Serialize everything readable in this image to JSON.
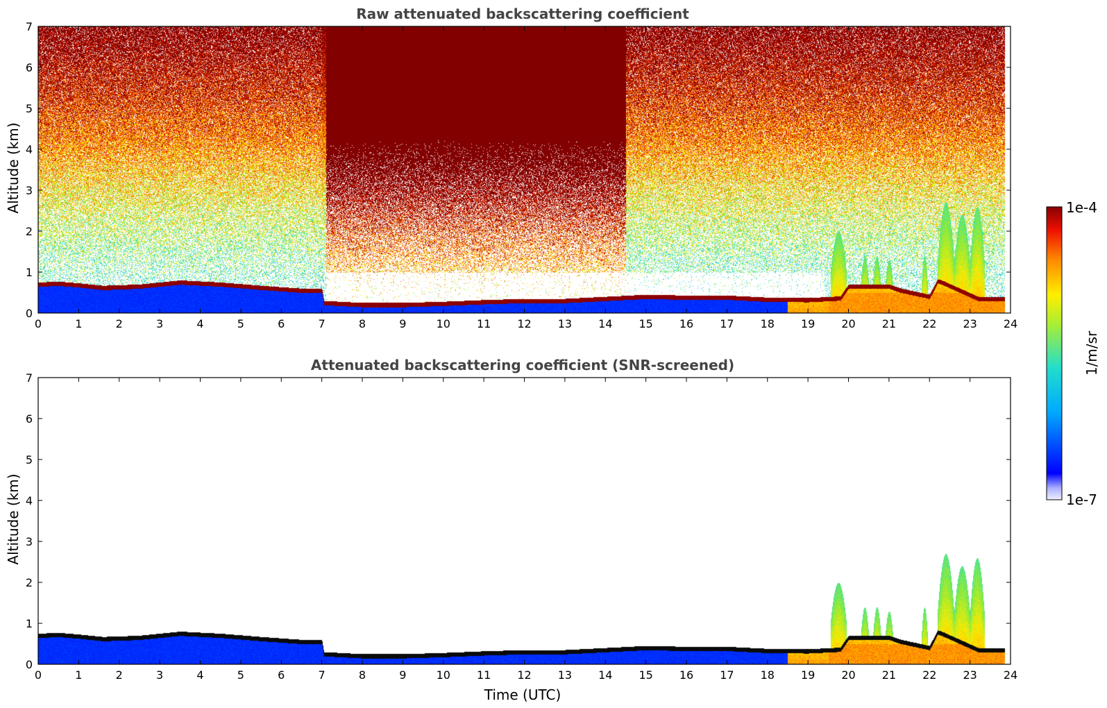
{
  "chart_data": [
    {
      "type": "heatmap",
      "title": "Raw attenuated backscattering coefficient",
      "xlabel": "",
      "ylabel": "Altitude (km)",
      "xlim": [
        0,
        24
      ],
      "ylim": [
        0,
        7
      ],
      "xticks": [
        0,
        1,
        2,
        3,
        4,
        5,
        6,
        7,
        8,
        9,
        10,
        11,
        12,
        13,
        14,
        15,
        16,
        17,
        18,
        19,
        20,
        21,
        22,
        23,
        24
      ],
      "yticks": [
        0,
        1,
        2,
        3,
        4,
        5,
        6,
        7
      ],
      "colorscale": "jet",
      "screened": false
    },
    {
      "type": "heatmap",
      "title": "Attenuated backscattering coefficient (SNR-screened)",
      "xlabel": "Time (UTC)",
      "ylabel": "Altitude (km)",
      "xlim": [
        0,
        24
      ],
      "ylim": [
        0,
        7
      ],
      "xticks": [
        0,
        1,
        2,
        3,
        4,
        5,
        6,
        7,
        8,
        9,
        10,
        11,
        12,
        13,
        14,
        15,
        16,
        17,
        18,
        19,
        20,
        21,
        22,
        23,
        24
      ],
      "yticks": [
        0,
        1,
        2,
        3,
        4,
        5,
        6,
        7
      ],
      "colorscale": "jet",
      "screened": true
    }
  ],
  "colorbar": {
    "label": "1/m/sr",
    "max_label": "1e-4",
    "min_label": "1e-7",
    "scale": "log",
    "range": [
      1e-07,
      0.0001
    ]
  },
  "features": {
    "cloud_base_km": [
      [
        0,
        0.7
      ],
      [
        0.5,
        0.72
      ],
      [
        1,
        0.68
      ],
      [
        1.6,
        0.62
      ],
      [
        2.5,
        0.65
      ],
      [
        3.5,
        0.75
      ],
      [
        4.5,
        0.7
      ],
      [
        5.5,
        0.62
      ],
      [
        6.5,
        0.55
      ],
      [
        7.0,
        0.55
      ],
      [
        7.05,
        0.25
      ],
      [
        8,
        0.2
      ],
      [
        9,
        0.2
      ],
      [
        10,
        0.23
      ],
      [
        11,
        0.27
      ],
      [
        12,
        0.3
      ],
      [
        13,
        0.3
      ],
      [
        14,
        0.35
      ],
      [
        15,
        0.4
      ],
      [
        16,
        0.38
      ],
      [
        17,
        0.38
      ],
      [
        18,
        0.33
      ],
      [
        19,
        0.32
      ],
      [
        19.8,
        0.36
      ],
      [
        20,
        0.65
      ],
      [
        21,
        0.65
      ],
      [
        21.3,
        0.55
      ],
      [
        22,
        0.4
      ],
      [
        22.2,
        0.78
      ],
      [
        22.3,
        0.75
      ],
      [
        23.2,
        0.35
      ],
      [
        23.8,
        0.35
      ]
    ],
    "plumes": [
      {
        "t0": 19.55,
        "t1": 19.95,
        "top_km": 2.0
      },
      {
        "t0": 20.3,
        "t1": 20.5,
        "top_km": 1.4
      },
      {
        "t0": 20.6,
        "t1": 20.8,
        "top_km": 1.4
      },
      {
        "t0": 20.9,
        "t1": 21.1,
        "top_km": 1.3
      },
      {
        "t0": 21.8,
        "t1": 21.95,
        "top_km": 1.4
      },
      {
        "t0": 22.2,
        "t1": 22.6,
        "top_km": 2.7
      },
      {
        "t0": 22.6,
        "t1": 23.0,
        "top_km": 2.4
      },
      {
        "t0": 23.0,
        "t1": 23.35,
        "top_km": 2.6
      }
    ]
  }
}
